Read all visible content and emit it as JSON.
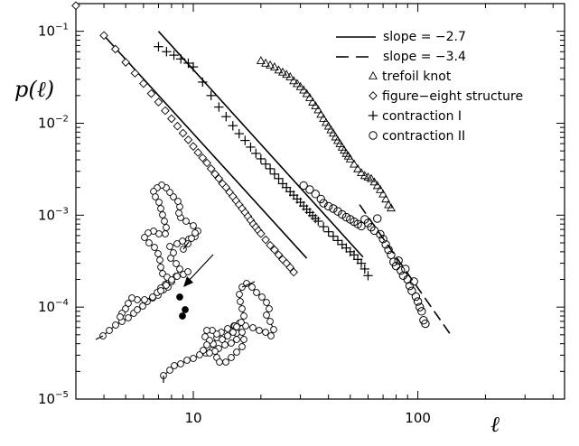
{
  "chart_data": {
    "type": "scatter",
    "title": "",
    "xlabel": "ℓ",
    "ylabel": "p(ℓ)",
    "xscale": "log",
    "yscale": "log",
    "xlim": [
      3,
      450
    ],
    "ylim": [
      1e-05,
      0.2
    ],
    "x_ticks": [
      {
        "value": 10,
        "label": "10"
      },
      {
        "value": 100,
        "label": "100"
      }
    ],
    "y_ticks": [
      {
        "value": 0.1,
        "base": "10",
        "exp": "−1"
      },
      {
        "value": 0.01,
        "base": "10",
        "exp": "−2"
      },
      {
        "value": 0.001,
        "base": "10",
        "exp": "−3"
      },
      {
        "value": 0.0001,
        "base": "10",
        "exp": "−4"
      },
      {
        "value": 1e-05,
        "base": "10",
        "exp": "−5"
      }
    ],
    "legend_position": "top-right",
    "fit_lines": [
      {
        "name": "slope = −2.7",
        "style": "solid",
        "points": [
          [
            4,
            0.09
          ],
          [
            32,
            0.00034
          ]
        ]
      },
      {
        "name": "slope = −2.7",
        "style": "solid",
        "points": [
          [
            7,
            0.1
          ],
          [
            57,
            0.00035
          ]
        ]
      },
      {
        "name": "slope = −3.4",
        "style": "dashed",
        "points": [
          [
            55,
            0.0013
          ],
          [
            140,
            5e-05
          ]
        ]
      }
    ],
    "series": [
      {
        "name": "trefoil knot",
        "marker": "triangle",
        "x": [
          20,
          21,
          22,
          23,
          24,
          25,
          26,
          27,
          28,
          29,
          30,
          31,
          32,
          33,
          34,
          35,
          36,
          37,
          38,
          39,
          40,
          41,
          42,
          43,
          44,
          45,
          46,
          47,
          48,
          49,
          50,
          52,
          54,
          56,
          58,
          60,
          62,
          64,
          66,
          68,
          70,
          72,
          74,
          76
        ],
        "y": [
          0.048,
          0.045,
          0.043,
          0.041,
          0.038,
          0.036,
          0.034,
          0.032,
          0.029,
          0.027,
          0.025,
          0.023,
          0.021,
          0.019,
          0.017,
          0.0155,
          0.014,
          0.0125,
          0.0113,
          0.0102,
          0.0093,
          0.0085,
          0.0078,
          0.0071,
          0.0065,
          0.006,
          0.0055,
          0.0051,
          0.0047,
          0.0044,
          0.0041,
          0.0036,
          0.0032,
          0.0029,
          0.0027,
          0.0026,
          0.0025,
          0.0023,
          0.0021,
          0.0019,
          0.0017,
          0.0015,
          0.0013,
          0.0012
        ]
      },
      {
        "name": "figure−eight structure",
        "marker": "diamond",
        "x": [
          3,
          4,
          4.5,
          5,
          5.5,
          6,
          6.5,
          7,
          7.5,
          8,
          8.5,
          9,
          9.5,
          10,
          10.5,
          11,
          11.5,
          12,
          12.5,
          13,
          13.5,
          14,
          14.5,
          15,
          15.5,
          16,
          16.5,
          17,
          17.5,
          18,
          18.5,
          19,
          19.5,
          20,
          21,
          22,
          23,
          24,
          25,
          26,
          27,
          28
        ],
        "y": [
          0.19,
          0.09,
          0.064,
          0.046,
          0.035,
          0.027,
          0.021,
          0.017,
          0.0137,
          0.0112,
          0.0093,
          0.0078,
          0.0066,
          0.0056,
          0.0048,
          0.0042,
          0.0037,
          0.0032,
          0.0028,
          0.0025,
          0.0022,
          0.002,
          0.00178,
          0.0016,
          0.00144,
          0.0013,
          0.00118,
          0.00107,
          0.00097,
          0.00088,
          0.0008,
          0.00074,
          0.00068,
          0.00063,
          0.00054,
          0.00047,
          0.00042,
          0.00037,
          0.00033,
          0.0003,
          0.00027,
          0.00024
        ]
      },
      {
        "name": "contraction I",
        "marker": "plus",
        "x": [
          7,
          7.6,
          8.2,
          8.8,
          9.5,
          10,
          11,
          12,
          13,
          14,
          15,
          16,
          17,
          18,
          19,
          20,
          21,
          22,
          23,
          24,
          25,
          26,
          27,
          28,
          29,
          30,
          31,
          32,
          33,
          34,
          35,
          36,
          38,
          40,
          42,
          44,
          46,
          48,
          50,
          52,
          54,
          56,
          58,
          60
        ],
        "y": [
          0.068,
          0.06,
          0.055,
          0.05,
          0.045,
          0.041,
          0.028,
          0.02,
          0.015,
          0.0118,
          0.0094,
          0.0077,
          0.0065,
          0.0055,
          0.0047,
          0.0041,
          0.0036,
          0.0032,
          0.0028,
          0.0025,
          0.0022,
          0.002,
          0.0018,
          0.00165,
          0.0015,
          0.00138,
          0.00126,
          0.00116,
          0.00107,
          0.00099,
          0.00092,
          0.00086,
          0.00075,
          0.00066,
          0.00059,
          0.00053,
          0.00048,
          0.00044,
          0.0004,
          0.00037,
          0.00033,
          0.0003,
          0.00026,
          0.00022
        ]
      },
      {
        "name": "contraction II",
        "marker": "circle",
        "x": [
          31,
          33,
          35,
          37,
          38,
          40,
          42,
          44,
          46,
          48,
          50,
          52,
          54,
          56,
          58,
          60,
          62,
          64,
          66,
          68,
          70,
          72,
          74,
          76,
          78,
          80,
          82,
          84,
          86,
          88,
          90,
          92,
          94,
          96,
          98,
          100,
          102,
          104,
          106,
          108
        ],
        "y": [
          0.0021,
          0.0019,
          0.0017,
          0.0015,
          0.00135,
          0.00125,
          0.00118,
          0.0011,
          0.00102,
          0.00095,
          0.0009,
          0.00085,
          0.0008,
          0.00076,
          0.0009,
          0.00082,
          0.00074,
          0.00068,
          0.00092,
          0.00062,
          0.00055,
          0.00048,
          0.00042,
          0.00037,
          0.00031,
          0.00028,
          0.00032,
          0.00025,
          0.00022,
          0.00026,
          0.0002,
          0.00017,
          0.00015,
          0.00019,
          0.00013,
          0.000115,
          0.0001,
          9e-05,
          7.2e-05,
          6.6e-05
        ]
      }
    ],
    "legend": [
      {
        "label": "slope = −2.7",
        "symbol": "solid-line"
      },
      {
        "label": "slope = −3.4",
        "symbol": "dashed-line"
      },
      {
        "label": "trefoil knot",
        "symbol": "triangle"
      },
      {
        "label": "figure−eight structure",
        "symbol": "diamond"
      },
      {
        "label": "contraction I",
        "symbol": "plus"
      },
      {
        "label": "contraction II",
        "symbol": "circle"
      }
    ],
    "inset": {
      "description": "polymer chain drawing with arrow",
      "chain_color": "#000000"
    }
  }
}
